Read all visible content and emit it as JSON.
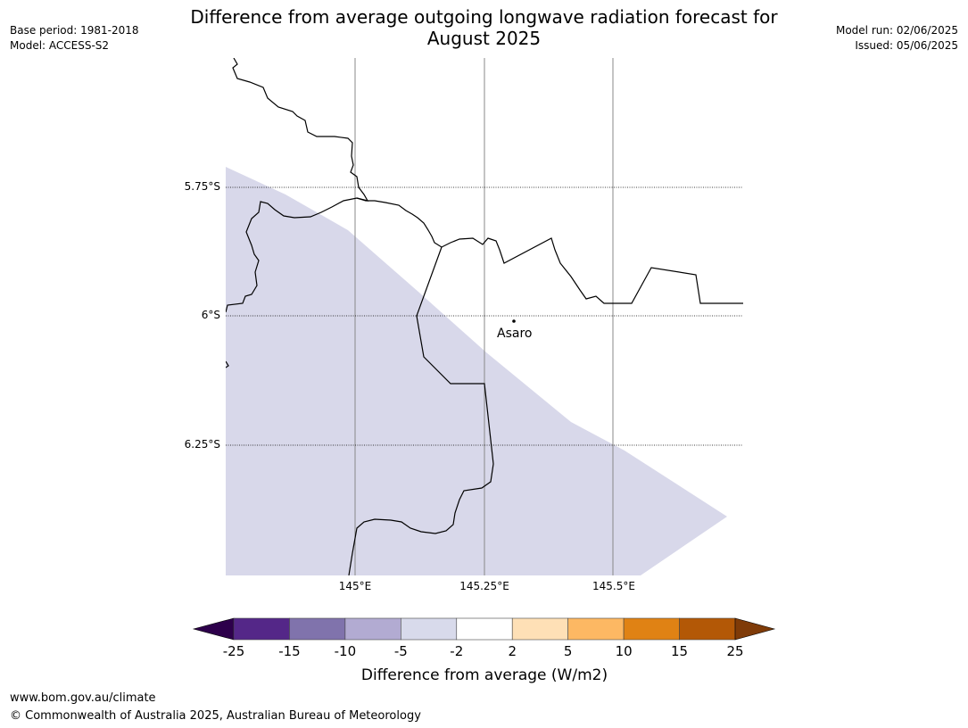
{
  "header": {
    "title_line1": "Difference from average outgoing longwave radiation forecast for",
    "title_line2": "August 2025",
    "base_period": "Base period: 1981-2018",
    "model": "Model: ACCESS-S2",
    "model_run": "Model run: 02/06/2025",
    "issued": "Issued: 05/06/2025"
  },
  "map": {
    "lat_labels": [
      "5.75°S",
      "6°S",
      "6.25°S"
    ],
    "lon_labels": [
      "145°E",
      "145.25°E",
      "145.5°E"
    ],
    "place": {
      "name": "Asaro",
      "lon": 145.3,
      "lat": -6.01
    },
    "shaded_band": "-5 to -2",
    "colors": {
      "shade": "#d8d8ea",
      "boundary": "#000000",
      "gridline": "#888888"
    }
  },
  "legend": {
    "title": "Difference from average (W/m2)",
    "ticks": [
      "-25",
      "-15",
      "-10",
      "-5",
      "-2",
      "2",
      "5",
      "10",
      "15",
      "25"
    ],
    "colors": {
      "below": "#2d004b",
      "bands": [
        "#542788",
        "#8073ac",
        "#b2abd2",
        "#d8daeb",
        "#ffffff",
        "#fee0b6",
        "#fdb863",
        "#e08214",
        "#b35806"
      ],
      "above": "#7f3b08"
    }
  },
  "footer": {
    "url": "www.bom.gov.au/climate",
    "copyright": "© Commonwealth of Australia 2025, Australian Bureau of Meteorology"
  }
}
